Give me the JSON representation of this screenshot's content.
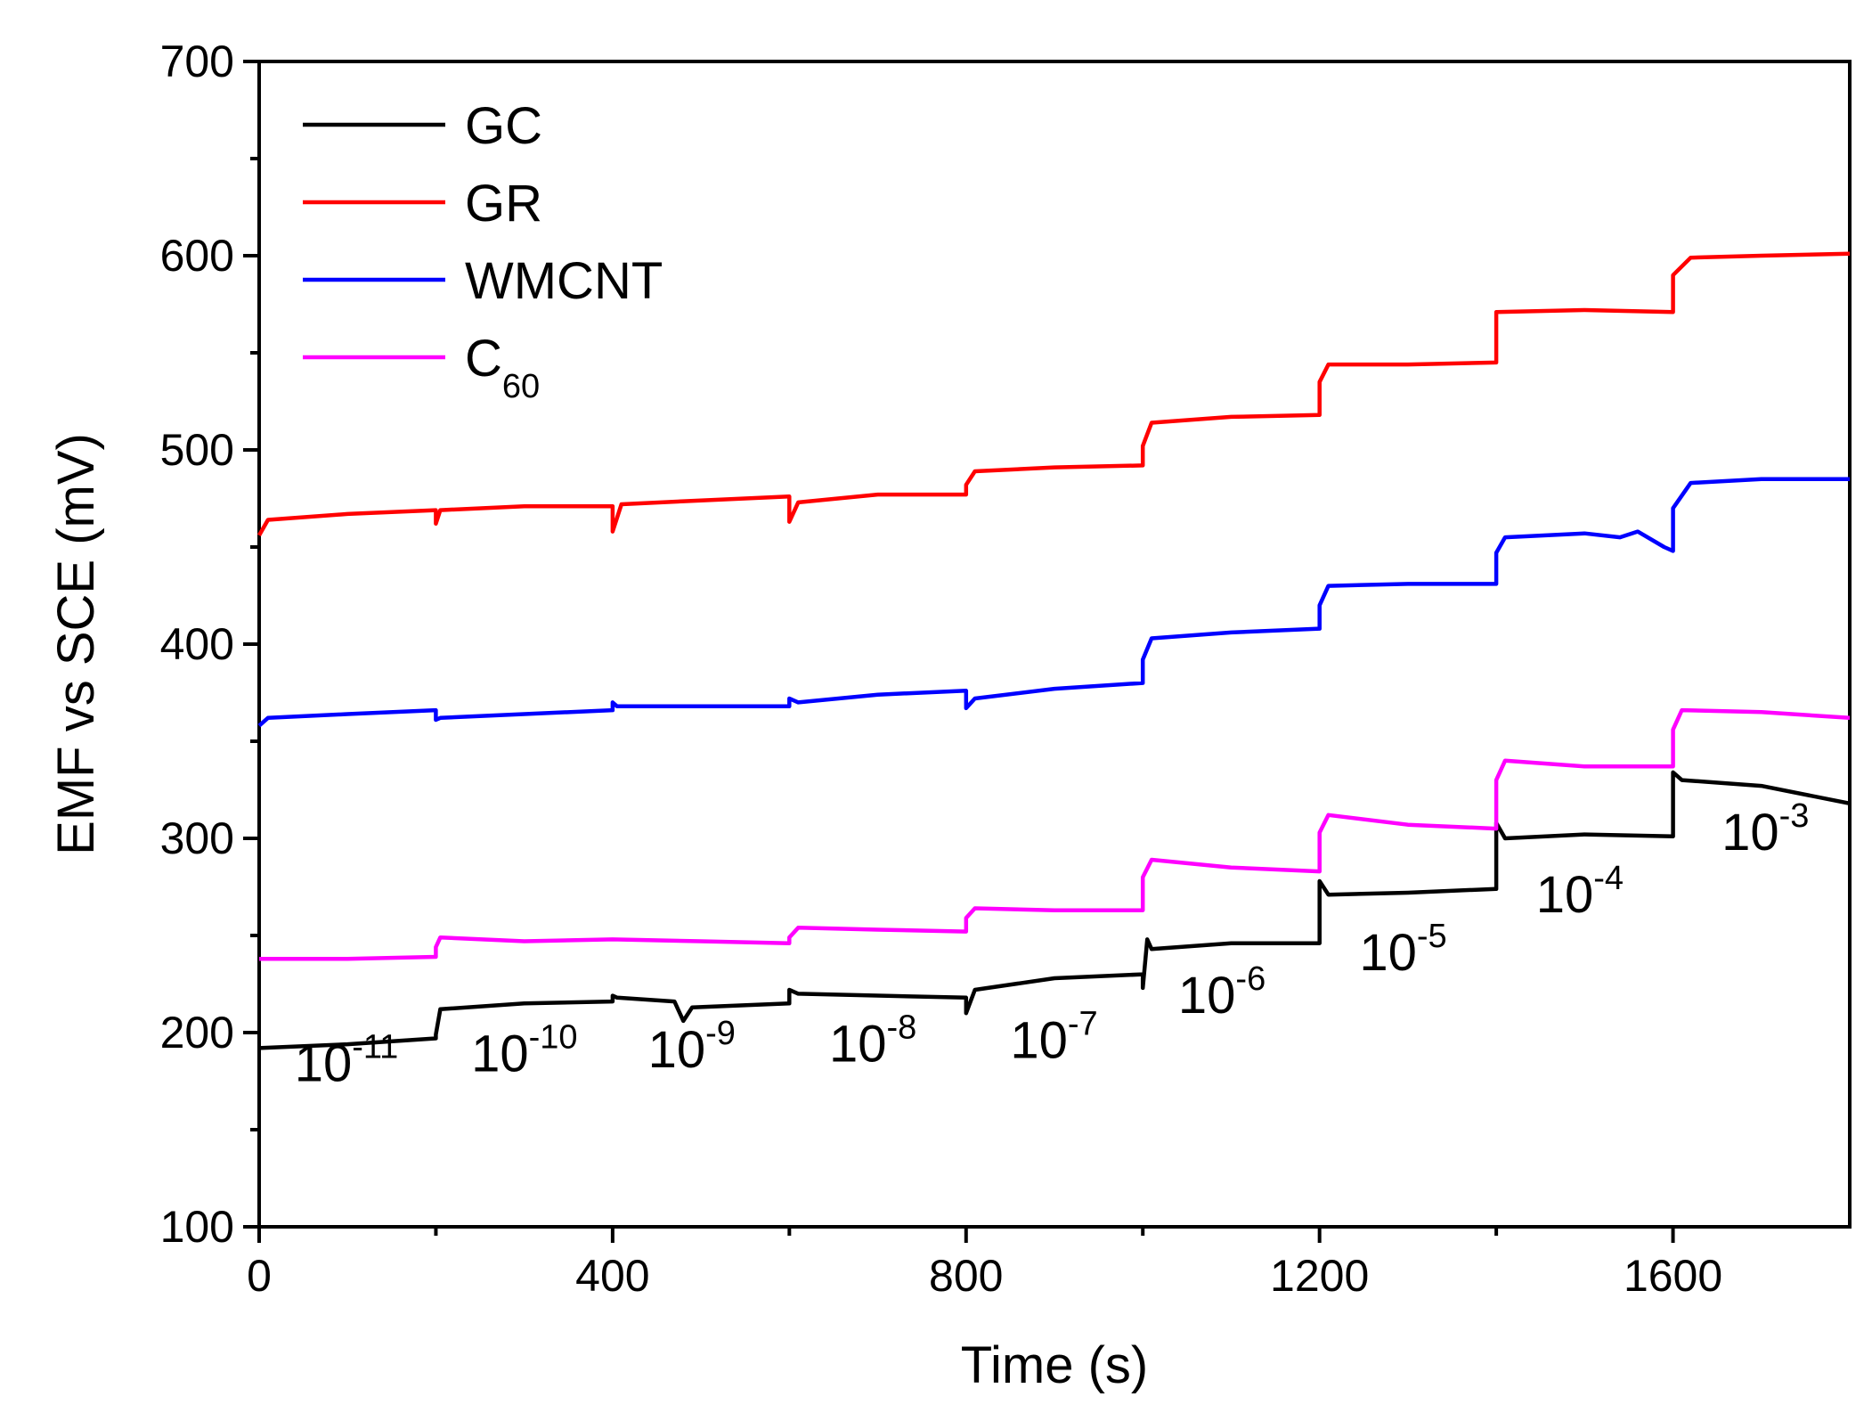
{
  "chart_data": {
    "type": "line",
    "title": "",
    "xlabel": "Time (s)",
    "ylabel": "EMF vs SCE (mV)",
    "xlim": [
      0,
      1800
    ],
    "ylim": [
      100,
      700
    ],
    "x_ticks": [
      "0",
      "400",
      "800",
      "1200",
      "1600"
    ],
    "y_ticks": [
      "100",
      "200",
      "300",
      "400",
      "500",
      "600",
      "700"
    ],
    "grid": false,
    "legend_position": "top-left",
    "series": [
      {
        "name": "GC",
        "legend_main": "GC",
        "legend_sub": "",
        "color": "#000000",
        "points": [
          [
            0,
            192
          ],
          [
            100,
            194
          ],
          [
            200,
            197
          ],
          [
            200,
            199
          ],
          [
            205,
            212
          ],
          [
            300,
            215
          ],
          [
            400,
            216
          ],
          [
            400,
            219
          ],
          [
            405,
            218
          ],
          [
            470,
            216
          ],
          [
            480,
            206
          ],
          [
            490,
            213
          ],
          [
            600,
            215
          ],
          [
            600,
            222
          ],
          [
            610,
            220
          ],
          [
            800,
            218
          ],
          [
            800,
            210
          ],
          [
            810,
            222
          ],
          [
            900,
            228
          ],
          [
            1000,
            230
          ],
          [
            1000,
            223
          ],
          [
            1005,
            248
          ],
          [
            1010,
            243
          ],
          [
            1100,
            246
          ],
          [
            1200,
            246
          ],
          [
            1200,
            278
          ],
          [
            1210,
            271
          ],
          [
            1300,
            272
          ],
          [
            1400,
            274
          ],
          [
            1400,
            308
          ],
          [
            1410,
            300
          ],
          [
            1500,
            302
          ],
          [
            1600,
            301
          ],
          [
            1600,
            334
          ],
          [
            1610,
            330
          ],
          [
            1700,
            327
          ],
          [
            1800,
            318
          ]
        ]
      },
      {
        "name": "GR",
        "legend_main": "GR",
        "legend_sub": "",
        "color": "#ff0000",
        "points": [
          [
            0,
            456
          ],
          [
            10,
            464
          ],
          [
            100,
            467
          ],
          [
            200,
            469
          ],
          [
            200,
            462
          ],
          [
            205,
            469
          ],
          [
            300,
            471
          ],
          [
            400,
            471
          ],
          [
            400,
            458
          ],
          [
            410,
            472
          ],
          [
            500,
            474
          ],
          [
            600,
            476
          ],
          [
            600,
            463
          ],
          [
            610,
            473
          ],
          [
            700,
            477
          ],
          [
            800,
            477
          ],
          [
            800,
            482
          ],
          [
            810,
            489
          ],
          [
            900,
            491
          ],
          [
            1000,
            492
          ],
          [
            1000,
            502
          ],
          [
            1010,
            514
          ],
          [
            1100,
            517
          ],
          [
            1200,
            518
          ],
          [
            1200,
            535
          ],
          [
            1210,
            544
          ],
          [
            1300,
            544
          ],
          [
            1400,
            545
          ],
          [
            1400,
            571
          ],
          [
            1500,
            572
          ],
          [
            1600,
            571
          ],
          [
            1600,
            590
          ],
          [
            1620,
            599
          ],
          [
            1700,
            600
          ],
          [
            1800,
            601
          ]
        ]
      },
      {
        "name": "WMCNT",
        "legend_main": "WMCNT",
        "legend_sub": "",
        "color": "#0000ff",
        "points": [
          [
            0,
            358
          ],
          [
            10,
            362
          ],
          [
            100,
            364
          ],
          [
            200,
            366
          ],
          [
            200,
            361
          ],
          [
            205,
            362
          ],
          [
            300,
            364
          ],
          [
            400,
            366
          ],
          [
            400,
            370
          ],
          [
            405,
            368
          ],
          [
            500,
            368
          ],
          [
            600,
            368
          ],
          [
            600,
            372
          ],
          [
            610,
            370
          ],
          [
            700,
            374
          ],
          [
            800,
            376
          ],
          [
            800,
            367
          ],
          [
            810,
            372
          ],
          [
            900,
            377
          ],
          [
            1000,
            380
          ],
          [
            1000,
            392
          ],
          [
            1010,
            403
          ],
          [
            1100,
            406
          ],
          [
            1200,
            408
          ],
          [
            1200,
            420
          ],
          [
            1210,
            430
          ],
          [
            1300,
            431
          ],
          [
            1400,
            431
          ],
          [
            1400,
            447
          ],
          [
            1410,
            455
          ],
          [
            1500,
            457
          ],
          [
            1540,
            455
          ],
          [
            1560,
            458
          ],
          [
            1590,
            450
          ],
          [
            1600,
            448
          ],
          [
            1600,
            470
          ],
          [
            1620,
            483
          ],
          [
            1700,
            485
          ],
          [
            1800,
            485
          ]
        ]
      },
      {
        "name": "C60",
        "legend_main": "C",
        "legend_sub": "60",
        "color": "#ff00ff",
        "points": [
          [
            0,
            238
          ],
          [
            100,
            238
          ],
          [
            200,
            239
          ],
          [
            200,
            244
          ],
          [
            205,
            249
          ],
          [
            300,
            247
          ],
          [
            400,
            248
          ],
          [
            500,
            247
          ],
          [
            600,
            246
          ],
          [
            600,
            249
          ],
          [
            610,
            254
          ],
          [
            700,
            253
          ],
          [
            800,
            252
          ],
          [
            800,
            259
          ],
          [
            810,
            264
          ],
          [
            900,
            263
          ],
          [
            1000,
            263
          ],
          [
            1000,
            280
          ],
          [
            1010,
            289
          ],
          [
            1100,
            285
          ],
          [
            1200,
            283
          ],
          [
            1200,
            303
          ],
          [
            1210,
            312
          ],
          [
            1300,
            307
          ],
          [
            1400,
            305
          ],
          [
            1400,
            330
          ],
          [
            1410,
            340
          ],
          [
            1500,
            337
          ],
          [
            1600,
            337
          ],
          [
            1600,
            356
          ],
          [
            1610,
            366
          ],
          [
            1700,
            365
          ],
          [
            1800,
            362
          ]
        ]
      }
    ],
    "annotations": [
      {
        "base": "10",
        "exp": "-11",
        "x": 40,
        "y": 175
      },
      {
        "base": "10",
        "exp": "-10",
        "x": 240,
        "y": 180
      },
      {
        "base": "10",
        "exp": "-9",
        "x": 440,
        "y": 182
      },
      {
        "base": "10",
        "exp": "-8",
        "x": 645,
        "y": 185
      },
      {
        "base": "10",
        "exp": "-7",
        "x": 850,
        "y": 187
      },
      {
        "base": "10",
        "exp": "-6",
        "x": 1040,
        "y": 210
      },
      {
        "base": "10",
        "exp": "-5",
        "x": 1245,
        "y": 232
      },
      {
        "base": "10",
        "exp": "-4",
        "x": 1445,
        "y": 262
      },
      {
        "base": "10",
        "exp": "-3",
        "x": 1655,
        "y": 294
      }
    ]
  }
}
